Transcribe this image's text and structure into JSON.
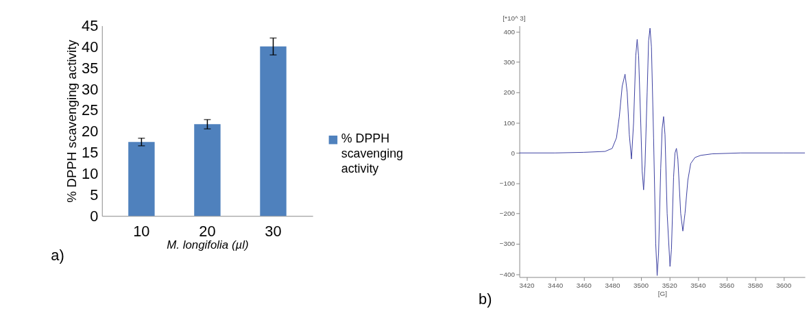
{
  "chart_data": [
    {
      "type": "bar",
      "categories": [
        "10",
        "20",
        "30"
      ],
      "xlabel": "M. longifolia (µl)",
      "ylabel": "% DPPH scavenging activity",
      "series": [
        {
          "name": "% DPPH scavenging activity",
          "color": "#4f81bd",
          "values": [
            17.5,
            21.7,
            40.1
          ],
          "errors": [
            0.9,
            1.1,
            2.0
          ]
        }
      ],
      "ylim": [
        0,
        45
      ],
      "yticks": [
        0,
        5,
        10,
        15,
        20,
        25,
        30,
        35,
        40,
        45
      ],
      "legend": "right",
      "grid": false,
      "annotations": [
        "a)"
      ]
    },
    {
      "type": "line",
      "xlabel": "[G]",
      "ylabel": "[*10^ 3]",
      "xlim": [
        3415,
        3615
      ],
      "xticks": [
        3420,
        3440,
        3460,
        3480,
        3500,
        3520,
        3540,
        3560,
        3580,
        3600
      ],
      "ylim": [
        -410,
        420
      ],
      "yticks": [
        -400,
        -300,
        -200,
        -100,
        0,
        100,
        200,
        300,
        400
      ],
      "grid": false,
      "annotations": [
        "b)"
      ],
      "series": [
        {
          "color": "#3a3ea0",
          "x": [
            3415,
            3440,
            3460,
            3475,
            3480,
            3483,
            3485,
            3487,
            3489,
            3490.5,
            3492,
            3493.5,
            3495,
            3496.5,
            3497.5,
            3498.5,
            3500,
            3501,
            3502,
            3503,
            3504.5,
            3505.5,
            3506.5,
            3507.5,
            3509,
            3510.5,
            3511.5,
            3512.5,
            3514,
            3515,
            3516,
            3517,
            3518.5,
            3520.5,
            3521.5,
            3523,
            3524,
            3525,
            3526,
            3528,
            3529.5,
            3531,
            3533,
            3535,
            3538,
            3542,
            3550,
            3570,
            3600,
            3615
          ],
          "values": [
            0,
            0,
            2,
            5,
            15,
            50,
            120,
            220,
            260,
            200,
            60,
            -20,
            100,
            320,
            375,
            320,
            100,
            -60,
            -122,
            -40,
            200,
            370,
            412,
            350,
            50,
            -300,
            -405,
            -330,
            -50,
            80,
            120,
            60,
            -200,
            -375,
            -320,
            -80,
            0,
            15,
            -20,
            -200,
            -258,
            -200,
            -90,
            -35,
            -15,
            -8,
            -3,
            0,
            0,
            0
          ]
        }
      ]
    }
  ]
}
